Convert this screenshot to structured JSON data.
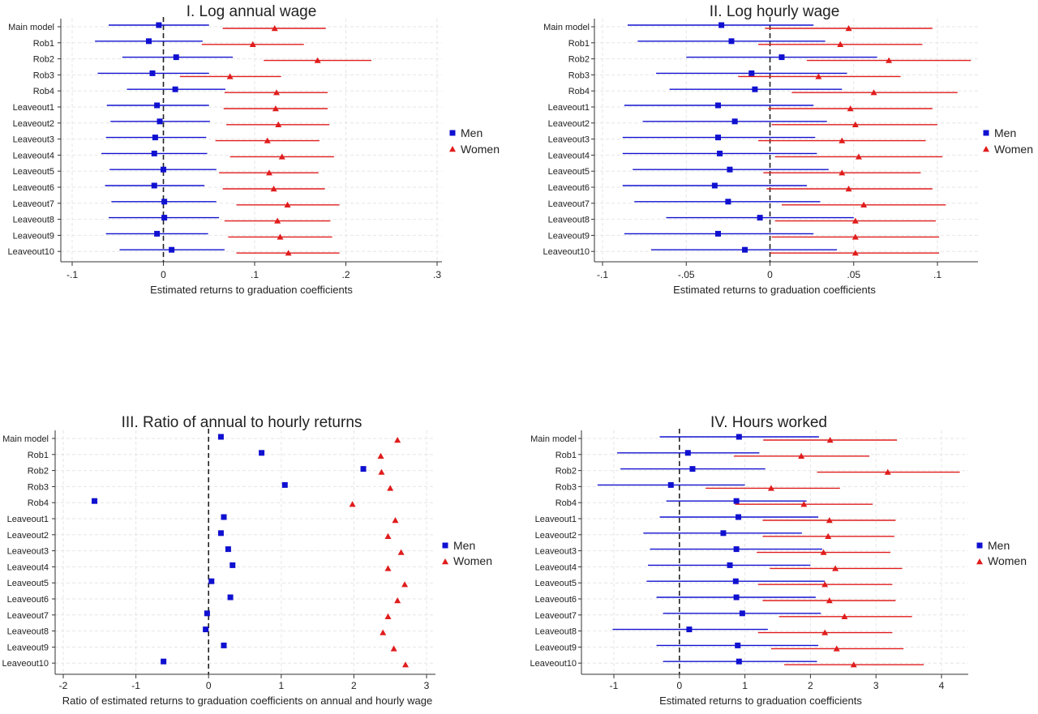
{
  "colors": {
    "men": "#1010d0",
    "women": "#e01c1c",
    "zero_line": "#222222"
  },
  "legend_labels": {
    "men": "Men",
    "women": "Women"
  },
  "chart_data": [
    {
      "id": "p1",
      "type": "coefficient_plot",
      "title": "I. Log annual wage",
      "xlabel": "Estimated returns to graduation coefficients",
      "xlim": [
        -0.1,
        0.3
      ],
      "xticks": [
        -0.1,
        0,
        0.1,
        0.2,
        0.3
      ],
      "xtick_labels": [
        "-.1",
        "0",
        ".1",
        ".2",
        ".3"
      ],
      "categories": [
        "Main model",
        "Rob1",
        "Rob2",
        "Rob3",
        "Rob4",
        "Leaveout1",
        "Leaveout2",
        "Leaveout3",
        "Leaveout4",
        "Leaveout5",
        "Leaveout6",
        "Leaveout7",
        "Leaveout8",
        "Leaveout9",
        "Leaveout10"
      ],
      "legend": "right",
      "series": [
        {
          "name": "Men",
          "marker": "square",
          "values": [
            -0.005,
            -0.016,
            0.014,
            -0.012,
            0.013,
            -0.007,
            -0.004,
            -0.009,
            -0.01,
            0.0,
            -0.01,
            0.001,
            0.001,
            -0.007,
            0.009
          ],
          "ci_low": [
            -0.06,
            -0.075,
            -0.045,
            -0.072,
            -0.04,
            -0.062,
            -0.058,
            -0.063,
            -0.068,
            -0.059,
            -0.064,
            -0.057,
            -0.06,
            -0.063,
            -0.048
          ],
          "ci_high": [
            0.05,
            0.043,
            0.076,
            0.05,
            0.068,
            0.05,
            0.051,
            0.047,
            0.048,
            0.058,
            0.045,
            0.058,
            0.061,
            0.049,
            0.067
          ]
        },
        {
          "name": "Women",
          "marker": "triangle",
          "values": [
            0.122,
            0.098,
            0.169,
            0.073,
            0.124,
            0.123,
            0.126,
            0.114,
            0.13,
            0.116,
            0.121,
            0.136,
            0.125,
            0.128,
            0.137
          ],
          "ci_low": [
            0.065,
            0.042,
            0.11,
            0.018,
            0.067,
            0.066,
            0.069,
            0.057,
            0.073,
            0.061,
            0.065,
            0.08,
            0.067,
            0.071,
            0.08
          ],
          "ci_high": [
            0.178,
            0.154,
            0.228,
            0.129,
            0.18,
            0.18,
            0.182,
            0.171,
            0.187,
            0.17,
            0.177,
            0.193,
            0.183,
            0.185,
            0.193
          ]
        }
      ]
    },
    {
      "id": "p2",
      "type": "coefficient_plot",
      "title": "II. Log hourly wage",
      "xlabel": "Estimated returns to graduation coefficients",
      "xlim": [
        -0.1,
        0.1
      ],
      "xticks": [
        -0.1,
        -0.05,
        0,
        0.05,
        0.1
      ],
      "xtick_labels": [
        "-.1",
        "-.05",
        "0",
        ".05",
        ".1"
      ],
      "categories": [
        "Main model",
        "Rob1",
        "Rob2",
        "Rob3",
        "Rob4",
        "Leaveout1",
        "Leaveout2",
        "Leaveout3",
        "Leaveout4",
        "Leaveout5",
        "Leaveout6",
        "Leaveout7",
        "Leaveout8",
        "Leaveout9",
        "Leaveout10"
      ],
      "legend": "right",
      "series": [
        {
          "name": "Men",
          "marker": "square",
          "values": [
            -0.029,
            -0.023,
            0.007,
            -0.011,
            -0.009,
            -0.031,
            -0.021,
            -0.031,
            -0.03,
            -0.024,
            -0.033,
            -0.025,
            -0.006,
            -0.031,
            -0.015
          ],
          "ci_low": [
            -0.085,
            -0.079,
            -0.05,
            -0.068,
            -0.06,
            -0.087,
            -0.076,
            -0.088,
            -0.088,
            -0.082,
            -0.088,
            -0.081,
            -0.062,
            -0.087,
            -0.071
          ],
          "ci_high": [
            0.026,
            0.033,
            0.064,
            0.046,
            0.043,
            0.026,
            0.034,
            0.027,
            0.028,
            0.035,
            0.022,
            0.03,
            0.05,
            0.026,
            0.04
          ]
        },
        {
          "name": "Women",
          "marker": "triangle",
          "values": [
            0.047,
            0.042,
            0.071,
            0.029,
            0.062,
            0.048,
            0.051,
            0.043,
            0.053,
            0.043,
            0.047,
            0.056,
            0.051,
            0.051,
            0.051
          ],
          "ci_low": [
            -0.003,
            -0.007,
            0.022,
            -0.019,
            0.013,
            -0.001,
            0.001,
            -0.007,
            0.003,
            -0.004,
            -0.002,
            0.007,
            0.003,
            0.001,
            0.0
          ],
          "ci_high": [
            0.097,
            0.091,
            0.12,
            0.078,
            0.112,
            0.097,
            0.1,
            0.093,
            0.103,
            0.09,
            0.097,
            0.105,
            0.099,
            0.101,
            0.101
          ]
        }
      ]
    },
    {
      "id": "p3",
      "type": "scatter",
      "title": "III. Ratio of annual to hourly returns",
      "xlabel": "Ratio of estimated returns to graduation coefficients on annual and hourly wage",
      "xlim": [
        -2,
        3
      ],
      "xticks": [
        -2,
        -1,
        0,
        1,
        2,
        3
      ],
      "xtick_labels": [
        "-2",
        "-1",
        "0",
        "1",
        "2",
        "3"
      ],
      "categories": [
        "Main model",
        "Rob1",
        "Rob2",
        "Rob3",
        "Rob4",
        "Leaveout1",
        "Leaveout2",
        "Leaveout3",
        "Leaveout4",
        "Leaveout5",
        "Leaveout6",
        "Leaveout7",
        "Leaveout8",
        "Leaveout9",
        "Leaveout10"
      ],
      "legend": "right",
      "series": [
        {
          "name": "Men",
          "marker": "square",
          "values": [
            0.17,
            0.73,
            2.13,
            1.05,
            -1.57,
            0.21,
            0.17,
            0.27,
            0.33,
            0.04,
            0.3,
            -0.02,
            -0.04,
            0.21,
            -0.62
          ]
        },
        {
          "name": "Women",
          "marker": "triangle",
          "values": [
            2.6,
            2.37,
            2.38,
            2.5,
            1.98,
            2.57,
            2.47,
            2.65,
            2.47,
            2.7,
            2.6,
            2.47,
            2.4,
            2.55,
            2.71
          ]
        }
      ]
    },
    {
      "id": "p4",
      "type": "coefficient_plot",
      "title": "IV. Hours worked",
      "xlabel": "Estimated returns to graduation coefficients",
      "xlim": [
        -1,
        4
      ],
      "xticks": [
        -1,
        0,
        1,
        2,
        3,
        4
      ],
      "xtick_labels": [
        "-1",
        "0",
        "1",
        "2",
        "3",
        "4"
      ],
      "categories": [
        "Main model",
        "Rob1",
        "Rob2",
        "Rob3",
        "Rob4",
        "Leaveout1",
        "Leaveout2",
        "Leaveout3",
        "Leaveout4",
        "Leaveout5",
        "Leaveout6",
        "Leaveout7",
        "Leaveout8",
        "Leaveout9",
        "Leaveout10"
      ],
      "legend": "right",
      "series": [
        {
          "name": "Men",
          "marker": "square",
          "values": [
            0.91,
            0.13,
            0.2,
            -0.13,
            0.87,
            0.9,
            0.67,
            0.87,
            0.77,
            0.86,
            0.87,
            0.96,
            0.15,
            0.89,
            0.91
          ],
          "ci_low": [
            -0.3,
            -0.95,
            -0.9,
            -1.25,
            -0.2,
            -0.3,
            -0.55,
            -0.45,
            -0.48,
            -0.5,
            -0.35,
            -0.25,
            -1.02,
            -0.35,
            -0.25
          ],
          "ci_high": [
            2.13,
            1.22,
            1.31,
            1.0,
            1.94,
            2.12,
            1.87,
            2.18,
            2.0,
            2.22,
            2.08,
            2.16,
            1.35,
            2.12,
            2.1
          ]
        },
        {
          "name": "Women",
          "marker": "triangle",
          "values": [
            2.3,
            1.86,
            3.18,
            1.4,
            1.9,
            2.29,
            2.27,
            2.2,
            2.38,
            2.22,
            2.29,
            2.52,
            2.22,
            2.4,
            2.66
          ],
          "ci_low": [
            1.28,
            0.83,
            2.1,
            0.4,
            0.85,
            1.27,
            1.27,
            1.18,
            1.38,
            1.2,
            1.27,
            1.52,
            1.2,
            1.4,
            1.6
          ],
          "ci_high": [
            3.32,
            2.9,
            4.28,
            2.45,
            2.95,
            3.3,
            3.28,
            3.22,
            3.4,
            3.25,
            3.3,
            3.55,
            3.25,
            3.42,
            3.73
          ]
        }
      ]
    }
  ]
}
